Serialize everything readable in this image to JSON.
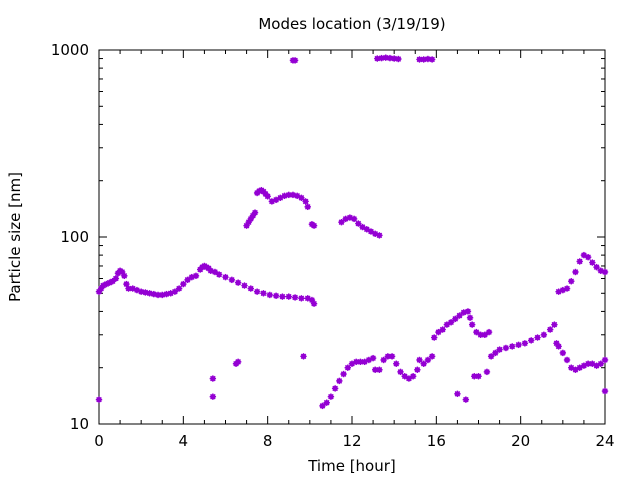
{
  "chart_data": {
    "type": "scatter",
    "title": "Modes location (3/19/19)",
    "xlabel": "Time [hour]",
    "ylabel": "Particle size [nm]",
    "xlim": [
      0,
      24
    ],
    "ylim": [
      10,
      1000
    ],
    "yscale": "log",
    "xticks": [
      0,
      4,
      8,
      12,
      16,
      20,
      24
    ],
    "xtick_labels": [
      "0",
      "4",
      "8",
      "12",
      "16",
      "20",
      "24"
    ],
    "yticks": [
      10,
      100,
      1000
    ],
    "ytick_labels": [
      "10",
      "100",
      "1000"
    ],
    "grid": false,
    "legend": "none",
    "marker_color": "#9400D3",
    "axis_color": "#000000",
    "series": [
      {
        "points": [
          [
            0.0,
            51
          ],
          [
            0.1,
            53
          ],
          [
            0.2,
            55
          ],
          [
            0.35,
            56
          ],
          [
            0.5,
            57
          ],
          [
            0.65,
            58
          ],
          [
            0.8,
            60
          ],
          [
            0.9,
            64
          ],
          [
            1.0,
            66
          ],
          [
            1.1,
            65
          ],
          [
            1.2,
            62
          ],
          [
            1.3,
            56
          ],
          [
            1.4,
            53
          ],
          [
            1.6,
            53
          ],
          [
            1.8,
            52
          ],
          [
            2.0,
            51
          ],
          [
            2.2,
            50.5
          ],
          [
            2.4,
            50
          ],
          [
            2.6,
            49.5
          ],
          [
            2.8,
            49
          ],
          [
            3.0,
            49
          ],
          [
            3.2,
            49.5
          ],
          [
            3.4,
            50
          ],
          [
            3.6,
            51
          ],
          [
            3.8,
            53
          ],
          [
            4.0,
            56
          ],
          [
            4.2,
            59
          ],
          [
            4.4,
            61
          ],
          [
            4.6,
            62
          ],
          [
            4.8,
            67
          ],
          [
            4.9,
            69
          ],
          [
            5.0,
            70
          ],
          [
            5.1,
            69
          ],
          [
            5.2,
            68
          ],
          [
            5.3,
            66
          ],
          [
            5.5,
            65
          ],
          [
            5.7,
            63
          ],
          [
            6.0,
            61
          ],
          [
            6.3,
            59
          ],
          [
            6.6,
            57
          ],
          [
            6.9,
            55
          ],
          [
            7.2,
            53
          ],
          [
            7.5,
            51
          ],
          [
            7.8,
            50
          ],
          [
            8.1,
            49
          ],
          [
            8.4,
            48.5
          ],
          [
            8.7,
            48
          ],
          [
            9.0,
            48
          ],
          [
            9.3,
            47.5
          ],
          [
            9.6,
            47
          ],
          [
            9.9,
            47
          ],
          [
            10.1,
            46
          ],
          [
            10.2,
            44
          ],
          [
            7.0,
            115
          ],
          [
            7.1,
            120
          ],
          [
            7.2,
            125
          ],
          [
            7.3,
            130
          ],
          [
            7.4,
            135
          ],
          [
            7.5,
            172
          ],
          [
            7.6,
            176
          ],
          [
            7.7,
            178
          ],
          [
            7.8,
            175
          ],
          [
            7.9,
            170
          ],
          [
            8.0,
            165
          ],
          [
            8.2,
            155
          ],
          [
            8.4,
            158
          ],
          [
            8.6,
            162
          ],
          [
            8.8,
            166
          ],
          [
            9.0,
            168
          ],
          [
            9.2,
            168
          ],
          [
            9.4,
            166
          ],
          [
            9.6,
            162
          ],
          [
            9.8,
            155
          ],
          [
            9.9,
            145
          ],
          [
            10.1,
            117
          ],
          [
            10.2,
            115
          ],
          [
            11.5,
            120
          ],
          [
            11.7,
            125
          ],
          [
            11.9,
            127
          ],
          [
            12.1,
            125
          ],
          [
            12.3,
            118
          ],
          [
            12.5,
            113
          ],
          [
            12.7,
            110
          ],
          [
            12.9,
            107
          ],
          [
            13.1,
            104
          ],
          [
            13.3,
            102
          ],
          [
            9.2,
            880
          ],
          [
            9.3,
            880
          ],
          [
            13.2,
            900
          ],
          [
            13.4,
            905
          ],
          [
            13.6,
            910
          ],
          [
            13.8,
            905
          ],
          [
            14.0,
            900
          ],
          [
            14.2,
            895
          ],
          [
            15.2,
            890
          ],
          [
            15.4,
            890
          ],
          [
            15.6,
            895
          ],
          [
            15.8,
            890
          ],
          [
            0.0,
            13.5
          ],
          [
            5.4,
            17.5
          ],
          [
            5.4,
            14
          ],
          [
            6.5,
            21
          ],
          [
            6.6,
            21.5
          ],
          [
            9.7,
            23
          ],
          [
            10.6,
            12.5
          ],
          [
            10.8,
            13
          ],
          [
            11.0,
            14
          ],
          [
            11.2,
            15.5
          ],
          [
            11.4,
            17
          ],
          [
            11.6,
            18.5
          ],
          [
            11.8,
            20
          ],
          [
            12.0,
            21
          ],
          [
            12.2,
            21.5
          ],
          [
            12.4,
            21.5
          ],
          [
            12.6,
            21.5
          ],
          [
            12.8,
            22
          ],
          [
            13.0,
            22.5
          ],
          [
            13.1,
            19.5
          ],
          [
            13.3,
            19.5
          ],
          [
            13.5,
            22
          ],
          [
            13.7,
            23
          ],
          [
            13.9,
            23
          ],
          [
            14.1,
            21
          ],
          [
            14.3,
            19
          ],
          [
            14.5,
            18
          ],
          [
            14.7,
            17.5
          ],
          [
            14.9,
            18
          ],
          [
            15.1,
            19.5
          ],
          [
            15.2,
            22
          ],
          [
            15.4,
            21
          ],
          [
            15.6,
            22
          ],
          [
            15.8,
            23
          ],
          [
            15.9,
            29
          ],
          [
            16.1,
            31
          ],
          [
            16.3,
            32
          ],
          [
            16.5,
            34
          ],
          [
            16.7,
            35
          ],
          [
            16.9,
            36.5
          ],
          [
            17.1,
            38
          ],
          [
            17.3,
            39.5
          ],
          [
            17.5,
            40
          ],
          [
            17.6,
            37
          ],
          [
            17.7,
            34
          ],
          [
            17.9,
            31
          ],
          [
            18.1,
            30
          ],
          [
            18.3,
            30
          ],
          [
            18.5,
            31
          ],
          [
            17.0,
            14.5
          ],
          [
            17.4,
            13.5
          ],
          [
            17.8,
            18
          ],
          [
            18.0,
            18
          ],
          [
            18.4,
            19
          ],
          [
            18.6,
            23
          ],
          [
            18.8,
            24
          ],
          [
            19.0,
            25
          ],
          [
            19.3,
            25.5
          ],
          [
            19.6,
            26
          ],
          [
            19.9,
            26.5
          ],
          [
            20.2,
            27
          ],
          [
            20.5,
            28
          ],
          [
            20.8,
            29
          ],
          [
            21.1,
            30
          ],
          [
            21.4,
            32
          ],
          [
            21.6,
            34
          ],
          [
            21.7,
            27
          ],
          [
            21.8,
            26
          ],
          [
            22.0,
            24
          ],
          [
            22.2,
            22
          ],
          [
            22.4,
            20
          ],
          [
            22.6,
            19.5
          ],
          [
            22.8,
            20
          ],
          [
            23.0,
            20.5
          ],
          [
            23.2,
            21
          ],
          [
            23.4,
            21
          ],
          [
            23.6,
            20.5
          ],
          [
            23.8,
            21
          ],
          [
            24.0,
            22
          ],
          [
            24.0,
            15
          ],
          [
            21.8,
            51
          ],
          [
            22.0,
            52
          ],
          [
            22.2,
            53
          ],
          [
            22.4,
            58
          ],
          [
            22.6,
            65
          ],
          [
            22.8,
            74
          ],
          [
            23.0,
            80
          ],
          [
            23.2,
            78
          ],
          [
            23.4,
            73
          ],
          [
            23.6,
            69
          ],
          [
            23.8,
            66
          ],
          [
            24.0,
            65
          ]
        ]
      }
    ]
  }
}
